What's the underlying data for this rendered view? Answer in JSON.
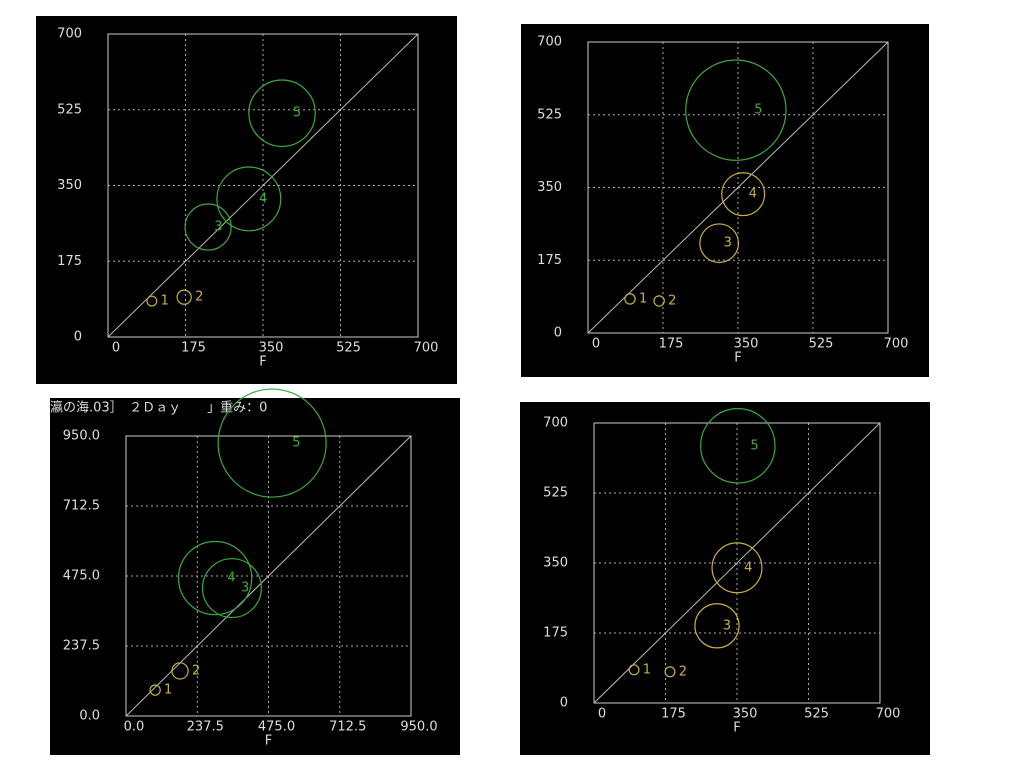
{
  "chart_data": [
    {
      "type": "bubble",
      "xlabel": "F",
      "x": [
        99,
        172,
        226,
        318,
        393
      ],
      "values": [
        83,
        92,
        254,
        319,
        517
      ],
      "sizes": [
        11,
        16,
        52,
        72,
        75
      ],
      "labels": [
        "1",
        "2",
        "3",
        "4",
        "5"
      ],
      "colors": [
        "#c8b040",
        "#c8b040",
        "#3caa3c",
        "#3caa3c",
        "#3caa3c"
      ],
      "xlim": [
        0,
        700
      ],
      "ylim": [
        0,
        700
      ],
      "xticks": [
        0,
        175,
        350,
        525,
        700
      ],
      "yticks": [
        0,
        175,
        350,
        525,
        700
      ],
      "grid": true
    },
    {
      "type": "bubble",
      "xlabel": "F",
      "x": [
        98,
        166,
        306,
        362,
        345
      ],
      "values": [
        82,
        77,
        216,
        334,
        536
      ],
      "sizes": [
        12,
        12,
        45,
        50,
        117
      ],
      "labels": [
        "1",
        "2",
        "3",
        "4",
        "5"
      ],
      "colors": [
        "#c8b040",
        "#c8b040",
        "#c8b040",
        "#c8b040",
        "#3caa3c"
      ],
      "xlim": [
        0,
        700
      ],
      "ylim": [
        0,
        700
      ],
      "xticks": [
        0,
        175,
        350,
        525,
        700
      ],
      "yticks": [
        0,
        175,
        350,
        525,
        700
      ],
      "grid": true
    },
    {
      "type": "bubble",
      "title": "瀛の海.03］　２Ｄａｙ　　」重み：0",
      "xlabel": "F",
      "x": [
        97,
        180,
        353,
        297,
        487
      ],
      "values": [
        88,
        153,
        434,
        468,
        926
      ],
      "sizes": [
        17,
        27,
        98,
        122,
        180
      ],
      "labels": [
        "1",
        "2",
        "3",
        "4",
        "5"
      ],
      "colors": [
        "#c8b040",
        "#c8b040",
        "#3caa3c",
        "#3caa3c",
        "#3caa3c"
      ],
      "xlim": [
        0,
        950
      ],
      "ylim": [
        0,
        950
      ],
      "xticks": [
        {
          "value": 0,
          "label": "0.0"
        },
        {
          "value": 237.5,
          "label": "237.5"
        },
        {
          "value": 475,
          "label": "475.0"
        },
        {
          "value": 712.5,
          "label": "712.5"
        },
        {
          "value": 950,
          "label": "950.0"
        }
      ],
      "yticks": [
        {
          "value": 0,
          "label": "0.0"
        },
        {
          "value": 237.5,
          "label": "237.5"
        },
        {
          "value": 475,
          "label": "475.0"
        },
        {
          "value": 712.5,
          "label": "712.5"
        },
        {
          "value": 950,
          "label": "950.0"
        }
      ],
      "grid": true
    },
    {
      "type": "bubble",
      "xlabel": "F",
      "x": [
        98,
        186,
        301,
        350,
        352
      ],
      "values": [
        83,
        78,
        193,
        338,
        643
      ],
      "sizes": [
        12,
        12,
        54,
        61,
        91
      ],
      "labels": [
        "1",
        "2",
        "3",
        "4",
        "5"
      ],
      "colors": [
        "#c8b040",
        "#c8b040",
        "#c8b040",
        "#c8b040",
        "#3caa3c"
      ],
      "xlim": [
        0,
        700
      ],
      "ylim": [
        0,
        700
      ],
      "xticks": [
        0,
        175,
        350,
        525,
        700
      ],
      "yticks": [
        0,
        175,
        350,
        525,
        700
      ],
      "grid": true
    }
  ]
}
